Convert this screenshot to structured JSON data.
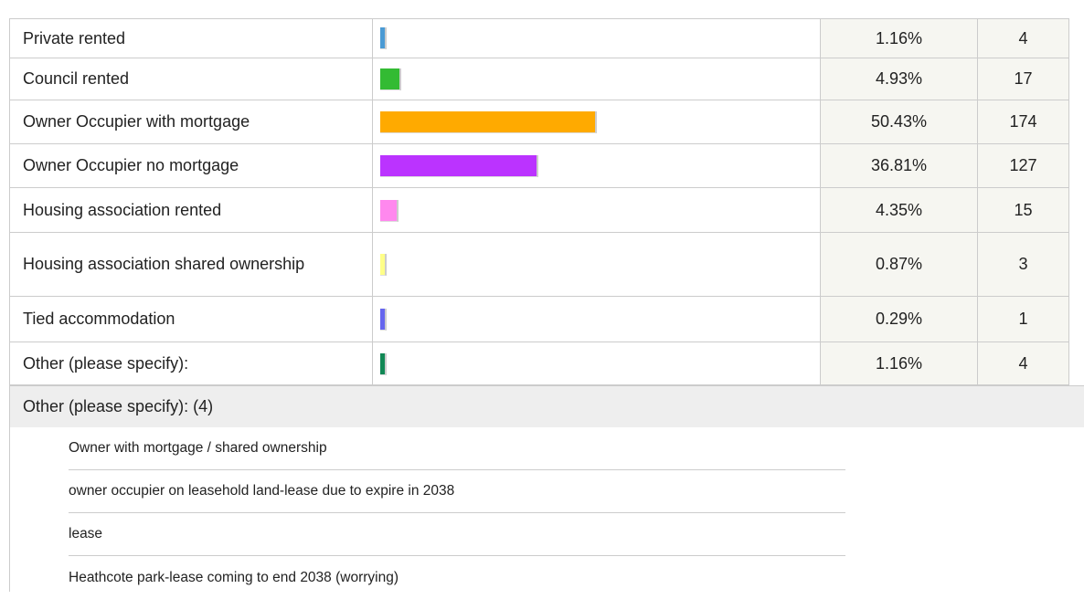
{
  "rows": [
    {
      "label": "Private rented",
      "percent": 1.16,
      "percent_label": "1.16%",
      "count": 4,
      "color": "#4a9ad4"
    },
    {
      "label": "Council rented",
      "percent": 4.93,
      "percent_label": "4.93%",
      "count": 17,
      "color": "#33bb33"
    },
    {
      "label": "Owner Occupier with mortgage",
      "percent": 50.43,
      "percent_label": "50.43%",
      "count": 174,
      "color": "#ffaa00"
    },
    {
      "label": "Owner Occupier no mortgage",
      "percent": 36.81,
      "percent_label": "36.81%",
      "count": 127,
      "color": "#bb33ff"
    },
    {
      "label": "Housing association rented",
      "percent": 4.35,
      "percent_label": "4.35%",
      "count": 15,
      "color": "#ff88ee"
    },
    {
      "label": "Housing association shared ownership",
      "percent": 0.87,
      "percent_label": "0.87%",
      "count": 3,
      "color": "#ffff88"
    },
    {
      "label": "Tied accommodation",
      "percent": 0.29,
      "percent_label": "0.29%",
      "count": 1,
      "color": "#6666ee"
    },
    {
      "label": "Other (please specify):",
      "percent": 1.16,
      "percent_label": "1.16%",
      "count": 4,
      "color": "#118855"
    }
  ],
  "other": {
    "title": "Other (please specify): (4)",
    "items": [
      "Owner with mortgage / shared ownership",
      "owner occupier on leasehold land-lease due to expire in 2038",
      "lease",
      "Heathcote park-lease coming to end 2038 (worrying)"
    ]
  }
}
